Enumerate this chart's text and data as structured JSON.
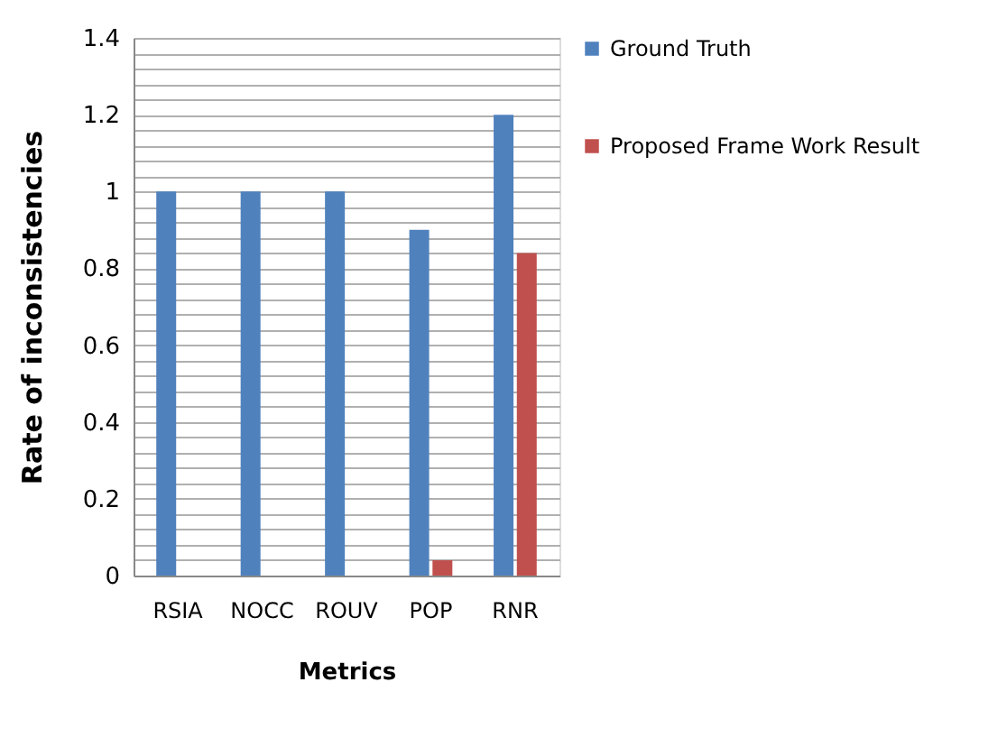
{
  "chart_data": {
    "type": "bar",
    "xlabel": "Metrics",
    "ylabel": "Rate of inconsistencies",
    "categories": [
      "RSIA",
      "NOCC",
      "ROUV",
      "POP",
      "RNR"
    ],
    "series": [
      {
        "name": "Ground Truth",
        "color": "#4f81bd",
        "values": [
          1,
          1,
          1,
          0.9,
          1.2
        ]
      },
      {
        "name": "Proposed Frame Work Result",
        "color": "#c0504d",
        "values": [
          0,
          0,
          0,
          0.04,
          0.84
        ]
      }
    ],
    "ylim": [
      0,
      1.4
    ],
    "yticks": [
      0,
      {
        "value": 0.04,
        "label": null
      },
      {
        "value": 0.08,
        "label": null
      },
      {
        "value": 0.12,
        "label": null
      },
      {
        "value": 0.16,
        "label": null
      },
      0.2,
      {
        "value": 0.24,
        "label": null
      },
      {
        "value": 0.28,
        "label": null
      },
      {
        "value": 0.32,
        "label": null
      },
      {
        "value": 0.36,
        "label": null
      },
      0.4,
      {
        "value": 0.44,
        "label": null
      },
      {
        "value": 0.48,
        "label": null
      },
      {
        "value": 0.52,
        "label": null
      },
      {
        "value": 0.56,
        "label": null
      },
      0.6,
      {
        "value": 0.64,
        "label": null
      },
      {
        "value": 0.68,
        "label": null
      },
      {
        "value": 0.72,
        "label": null
      },
      {
        "value": 0.76,
        "label": null
      },
      0.8,
      {
        "value": 0.84,
        "label": null
      },
      {
        "value": 0.88,
        "label": null
      },
      {
        "value": 0.92,
        "label": null
      },
      {
        "value": 0.96,
        "label": null
      },
      1,
      {
        "value": 1.04,
        "label": null
      },
      {
        "value": 1.08,
        "label": null
      },
      {
        "value": 1.12,
        "label": null
      },
      {
        "value": 1.16,
        "label": null
      },
      1.2,
      {
        "value": 1.24,
        "label": null
      },
      {
        "value": 1.28,
        "label": null
      },
      {
        "value": 1.32,
        "label": null
      },
      {
        "value": 1.36,
        "label": null
      },
      1.4
    ],
    "grid": "y",
    "legend": "right"
  }
}
